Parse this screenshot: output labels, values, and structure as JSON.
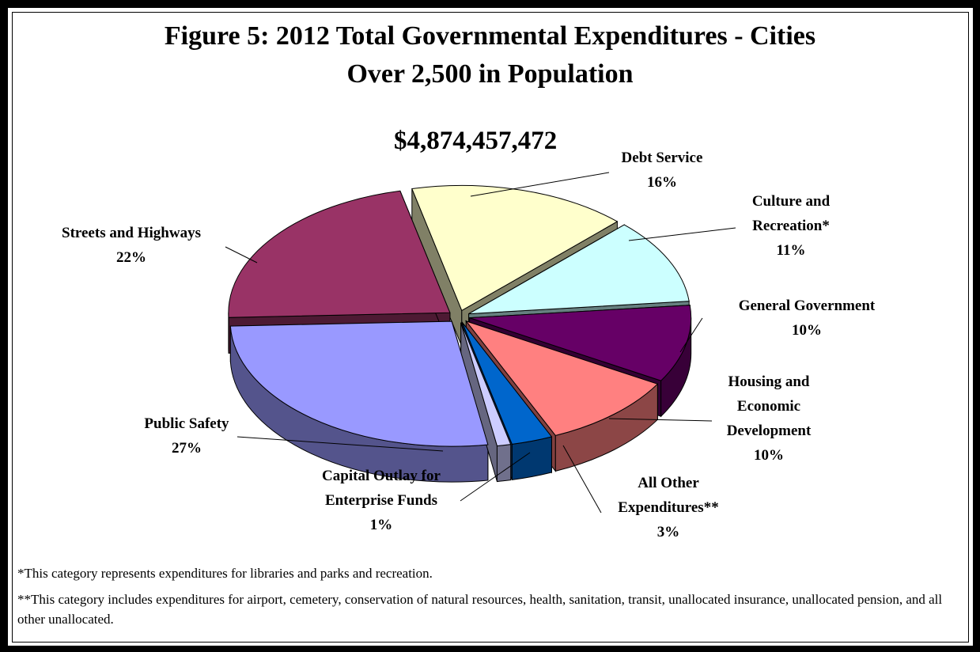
{
  "chart_data": {
    "type": "pie",
    "title_line1": "Figure 5:  2012 Total Governmental Expenditures - Cities",
    "title_line2": "Over 2,500 in Population",
    "total": "$4,874,457,472",
    "slices": [
      {
        "name": "Debt Service",
        "label_lines": [
          "Debt Service"
        ],
        "pct_text": "16%",
        "value": 16,
        "color": "#ffffcc"
      },
      {
        "name": "Culture and Recreation*",
        "label_lines": [
          "Culture and",
          "Recreation*"
        ],
        "pct_text": "11%",
        "value": 11,
        "color": "#ccffff"
      },
      {
        "name": "General Government",
        "label_lines": [
          "General Government"
        ],
        "pct_text": "10%",
        "value": 10,
        "color": "#660066"
      },
      {
        "name": "Housing and Economic Development",
        "label_lines": [
          "Housing and",
          "Economic",
          "Development"
        ],
        "pct_text": "10%",
        "value": 10,
        "color": "#ff8080"
      },
      {
        "name": "All Other Expenditures**",
        "label_lines": [
          "All Other",
          "Expenditures**"
        ],
        "pct_text": "3%",
        "value": 3,
        "color": "#0066cc"
      },
      {
        "name": "Capital Outlay for Enterprise Funds",
        "label_lines": [
          "Capital Outlay for",
          "Enterprise Funds"
        ],
        "pct_text": "1%",
        "value": 1,
        "color": "#ccccff"
      },
      {
        "name": "Public Safety",
        "label_lines": [
          "Public Safety"
        ],
        "pct_text": "27%",
        "value": 27,
        "color": "#9999ff"
      },
      {
        "name": "Streets and Highways",
        "label_lines": [
          "Streets and Highways"
        ],
        "pct_text": "22%",
        "value": 22,
        "color": "#993366"
      }
    ]
  },
  "notes": {
    "note1": "*This category represents expenditures for libraries and parks and recreation.",
    "note2": "**This category includes expenditures for airport, cemetery, conservation of natural resources, health, sanitation, transit, unallocated insurance, unallocated pension, and all other unallocated."
  }
}
